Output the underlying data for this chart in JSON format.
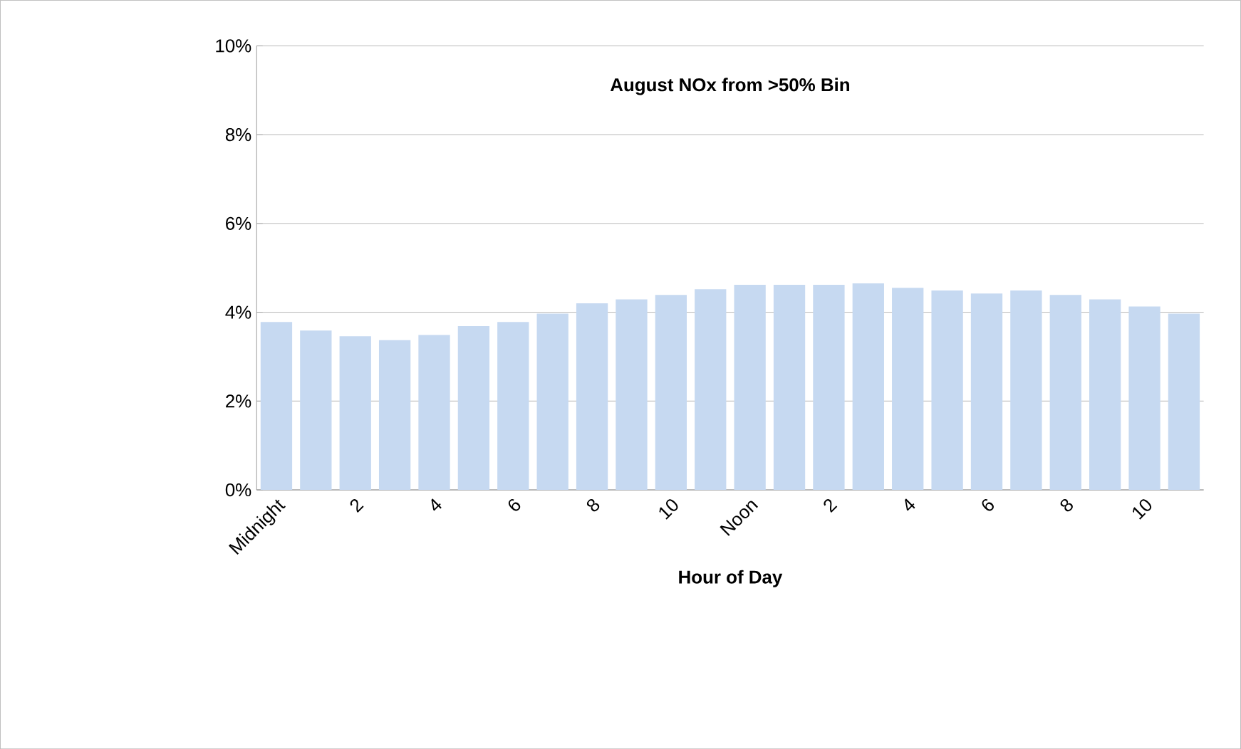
{
  "chart_data": {
    "type": "bar",
    "title": "August NOx from >50% Bin",
    "xlabel": "Hour of Day",
    "categories": [
      "Midnight",
      null,
      "2",
      null,
      "4",
      null,
      "6",
      null,
      "8",
      null,
      "10",
      null,
      "Noon",
      null,
      "2",
      null,
      "4",
      null,
      "6",
      null,
      "8",
      null,
      "10",
      null
    ],
    "values": [
      3.78,
      3.59,
      3.46,
      3.37,
      3.49,
      3.69,
      3.78,
      3.97,
      4.2,
      4.29,
      4.39,
      4.52,
      4.62,
      4.62,
      4.62,
      4.65,
      4.55,
      4.49,
      4.42,
      4.49,
      4.39,
      4.29,
      4.13,
      3.97
    ],
    "color": "#c6d9f1",
    "ylim": [
      0,
      10
    ],
    "yticks": [
      {
        "value": 0,
        "label": "0%"
      },
      {
        "value": 2,
        "label": "2%"
      },
      {
        "value": 4,
        "label": "4%"
      },
      {
        "value": 6,
        "label": "6%"
      },
      {
        "value": 8,
        "label": "8%"
      },
      {
        "value": 10,
        "label": "10%"
      }
    ],
    "grid": "y"
  }
}
